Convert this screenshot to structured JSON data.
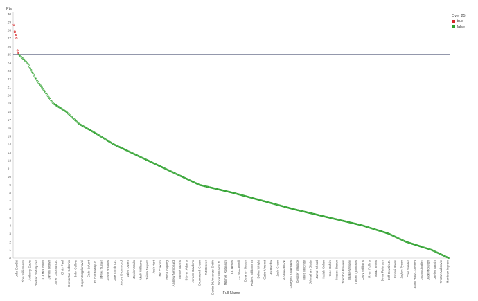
{
  "chart_data": {
    "type": "scatter",
    "xlabel": "Full Name",
    "ylabel": "Pts",
    "ylim": [
      0,
      30
    ],
    "yticks": [
      0,
      1,
      2,
      3,
      4,
      5,
      6,
      7,
      8,
      9,
      10,
      11,
      12,
      13,
      14,
      15,
      16,
      17,
      18,
      19,
      20,
      21,
      22,
      23,
      24,
      25,
      26,
      27,
      28,
      29,
      30
    ],
    "reference_line": 25,
    "grid": false,
    "legend": {
      "title": "Over 25",
      "placement": "top-right",
      "entries": [
        {
          "label": "true",
          "color": "#d62728"
        },
        {
          "label": "false",
          "color": "#2ca02c"
        }
      ]
    },
    "categories": [
      "Luka Dončić",
      "Zion Williamson",
      "Anthony Davis",
      "Dekker Gaffeljuzer",
      "CJ McCollum",
      "Jaylen Brown",
      "Jaren Jackson Jr.",
      "Chris Paul",
      "Domantas Sabonis",
      "John Collins",
      "Bogan Bogdanović",
      "Caris LeVert",
      "Tim Hardaway Jr.",
      "Myles Turner",
      "Austin Reaves",
      "Jalen Smith Jr.",
      "Andre Drummond",
      "Jalen Duren",
      "Jayden Walls",
      "Mark Williams",
      "Jaime Jaquez",
      "Josh Hart",
      "Nic Claxton",
      "Ben Coupling",
      "Andrew Nembhard",
      "Monté Morris",
      "Steven Adams",
      "Jordan Hawkins",
      "Drummond Green",
      "RJ Beaver",
      "Donte DiVincenzo-Smith",
      "Vince Williams Jr.",
      "Mitchell Robinson",
      "TJ Jaimes",
      "T.J. McConnell",
      "Delaney Bacon",
      "Robert Williams III",
      "Delon Wright",
      "Gabe Vincent",
      "Mo Bamba",
      "Josh Green",
      "Andrew Black",
      "Georgios Kalaitzakis",
      "Kessler Wallace",
      "Miles McBride",
      "Johnathan Blade",
      "Jamal Shead",
      "Isaiah Cullen",
      "Kobe Bufkin",
      "Moses Brown",
      "Trendon Powers",
      "Blake Wesley",
      "Lester Quinones",
      "Cody Williams",
      "Ryan Rollins",
      "Isaac Jones",
      "Drew Peterson",
      "Jeff Dowtin Jr.",
      "Emoni Bates",
      "Jaylon Tyson",
      "Cole Swider",
      "Jalen Hood-Schifino",
      "Leonard Miller",
      "Jack McVeigh",
      "Jaylen Martin",
      "Tristan Vukcevic",
      "Harrison Ingram"
    ],
    "red_points": [
      28.7,
      27.8,
      27.4,
      27.0,
      25.5,
      25.2
    ],
    "green_curve": [
      {
        "rank": 0.0,
        "value": 25.0
      },
      {
        "rank": 0.02,
        "value": 24.0
      },
      {
        "rank": 0.04,
        "value": 22.0
      },
      {
        "rank": 0.06,
        "value": 20.5
      },
      {
        "rank": 0.08,
        "value": 19.0
      },
      {
        "rank": 0.11,
        "value": 18.0
      },
      {
        "rank": 0.14,
        "value": 16.5
      },
      {
        "rank": 0.18,
        "value": 15.3
      },
      {
        "rank": 0.22,
        "value": 14.0
      },
      {
        "rank": 0.26,
        "value": 13.0
      },
      {
        "rank": 0.3,
        "value": 12.0
      },
      {
        "rank": 0.34,
        "value": 11.0
      },
      {
        "rank": 0.38,
        "value": 10.0
      },
      {
        "rank": 0.42,
        "value": 9.0
      },
      {
        "rank": 0.5,
        "value": 8.0
      },
      {
        "rank": 0.57,
        "value": 7.0
      },
      {
        "rank": 0.64,
        "value": 6.0
      },
      {
        "rank": 0.72,
        "value": 5.0
      },
      {
        "rank": 0.8,
        "value": 4.0
      },
      {
        "rank": 0.86,
        "value": 3.0
      },
      {
        "rank": 0.9,
        "value": 2.0
      },
      {
        "rank": 0.96,
        "value": 1.0
      },
      {
        "rank": 1.0,
        "value": 0.0
      }
    ],
    "green_point_count": 520
  }
}
